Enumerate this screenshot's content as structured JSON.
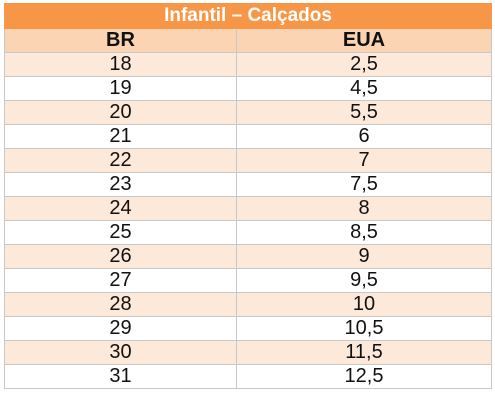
{
  "table": {
    "title": "Infantil – Calçados",
    "headers": [
      "BR",
      "EUA"
    ],
    "rows": [
      [
        "18",
        "2,5"
      ],
      [
        "19",
        "4,5"
      ],
      [
        "20",
        "5,5"
      ],
      [
        "21",
        "6"
      ],
      [
        "22",
        "7"
      ],
      [
        "23",
        "7,5"
      ],
      [
        "24",
        "8"
      ],
      [
        "25",
        "8,5"
      ],
      [
        "26",
        "9"
      ],
      [
        "27",
        "9,5"
      ],
      [
        "28",
        "10"
      ],
      [
        "29",
        "10,5"
      ],
      [
        "30",
        "11,5"
      ],
      [
        "31",
        "12,5"
      ]
    ]
  },
  "colors": {
    "title_background": "#f79646",
    "header_background": "#fbd4b4",
    "stripe_background": "#fde9d9"
  }
}
